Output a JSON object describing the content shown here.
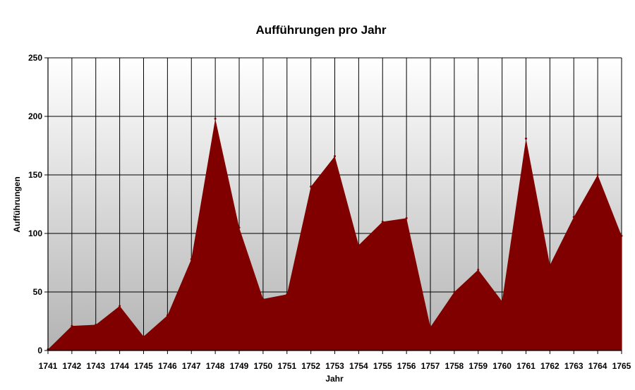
{
  "chart_data": {
    "type": "area",
    "title": "Aufführungen pro Jahr",
    "xlabel": "Jahr",
    "ylabel": "Aufführungen",
    "categories": [
      "1741",
      "1742",
      "1743",
      "1744",
      "1745",
      "1746",
      "1747",
      "1748",
      "1749",
      "1750",
      "1751",
      "1752",
      "1753",
      "1754",
      "1755",
      "1756",
      "1757",
      "1758",
      "1759",
      "1760",
      "1761",
      "1762",
      "1763",
      "1764",
      "1765"
    ],
    "series": [
      {
        "values": [
          1,
          21,
          22,
          38,
          12,
          30,
          78,
          198,
          105,
          44,
          48,
          140,
          166,
          90,
          110,
          113,
          20,
          50,
          69,
          42,
          181,
          73,
          114,
          150,
          98
        ]
      }
    ],
    "ylim": [
      0,
      250
    ],
    "yticks": [
      0,
      50,
      100,
      150,
      200,
      250
    ],
    "grid": true,
    "legend": "none",
    "colors": {
      "fill": "#800000",
      "gridline": "#000000",
      "background_top": "#ffffff",
      "background_bottom": "#b3b3b3"
    }
  }
}
